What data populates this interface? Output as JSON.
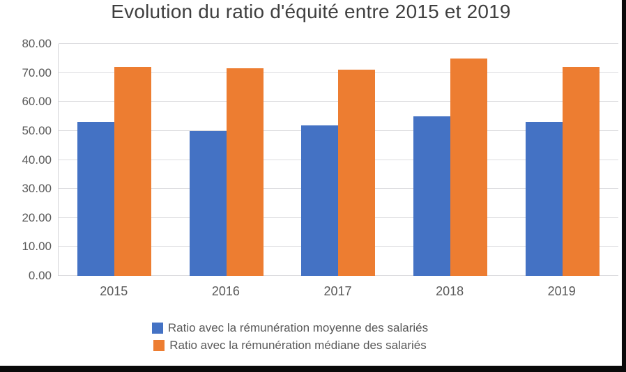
{
  "page": {
    "background": "#ffffff",
    "frame_edge_color": "#0a0a0a"
  },
  "chart_data": {
    "type": "bar",
    "title": "Evolution du ratio d'équité entre 2015 et 2019",
    "categories": [
      "2015",
      "2016",
      "2017",
      "2018",
      "2019"
    ],
    "series": [
      {
        "name": "Ratio avec la rémunération moyenne des salariés",
        "color": "#4472C4",
        "values": [
          53,
          50,
          52,
          55,
          53
        ]
      },
      {
        "name": "Ratio avec la rémunération médiane des salariés",
        "color": "#ED7D31",
        "values": [
          72,
          71.5,
          71,
          75,
          72
        ]
      }
    ],
    "xlabel": "",
    "ylabel": "",
    "ylim": [
      0,
      80
    ],
    "yticks": [
      0,
      10,
      20,
      30,
      40,
      50,
      60,
      70,
      80
    ],
    "ytick_labels": [
      "0.00",
      "10.00",
      "20.00",
      "30.00",
      "40.00",
      "50.00",
      "60.00",
      "70.00",
      "80.00"
    ],
    "grid": true,
    "legend_position": "bottom",
    "style": {
      "grid_color": "#dcdcdf",
      "axis_line_color": "#d4d4d8",
      "tick_text_color": "#595959",
      "title_text_color": "#3f3f3f"
    }
  }
}
